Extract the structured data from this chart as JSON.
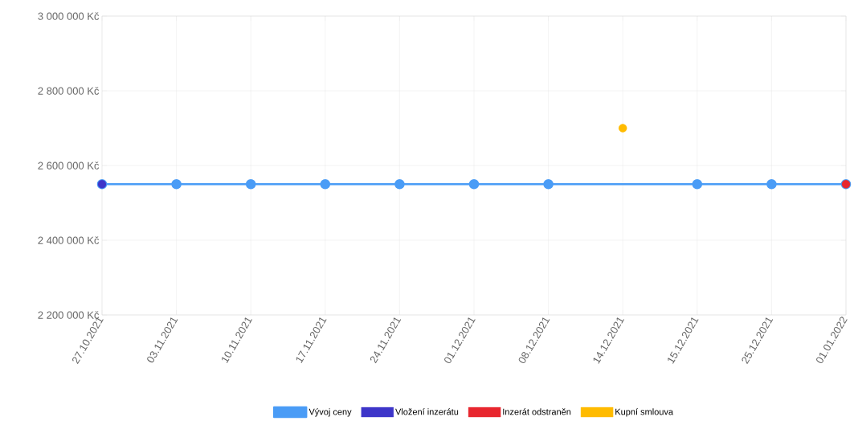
{
  "chart_data": {
    "type": "line",
    "categories": [
      "27.10.2021",
      "03.11.2021",
      "10.11.2021",
      "17.11.2021",
      "24.11.2021",
      "01.12.2021",
      "08.12.2021",
      "14.12.2021",
      "15.12.2021",
      "25.12.2021",
      "01.01.2022"
    ],
    "series": [
      {
        "name": "Vývoj ceny",
        "color": "#4a9cf6",
        "values": [
          2550000,
          2550000,
          2550000,
          2550000,
          2550000,
          2550000,
          2550000,
          null,
          2550000,
          2550000,
          2550000
        ]
      },
      {
        "name": "Vložení inzerátu",
        "type": "scatter",
        "color": "#3d35c9",
        "values": [
          2550000,
          null,
          null,
          null,
          null,
          null,
          null,
          null,
          null,
          null,
          null
        ]
      },
      {
        "name": "Inzerát odstraněn",
        "type": "scatter",
        "color": "#e8262e",
        "values": [
          null,
          null,
          null,
          null,
          null,
          null,
          null,
          null,
          null,
          null,
          2550000
        ]
      },
      {
        "name": "Kupní smlouva",
        "type": "scatter",
        "color": "#ffbb00",
        "values": [
          null,
          null,
          null,
          null,
          null,
          null,
          null,
          2700000,
          null,
          null,
          null
        ]
      }
    ],
    "ylim": [
      2200000,
      3000000
    ],
    "yticks": [
      {
        "value": 2200000,
        "label": "2 200 000 Kč"
      },
      {
        "value": 2400000,
        "label": "2 400 000 Kč"
      },
      {
        "value": 2600000,
        "label": "2 600 000 Kč"
      },
      {
        "value": 2800000,
        "label": "2 800 000 Kč"
      },
      {
        "value": 3000000,
        "label": "3 000 000 Kč"
      }
    ],
    "grid": true,
    "legend": "bottom",
    "marker": "circle",
    "line_style": "solid"
  }
}
